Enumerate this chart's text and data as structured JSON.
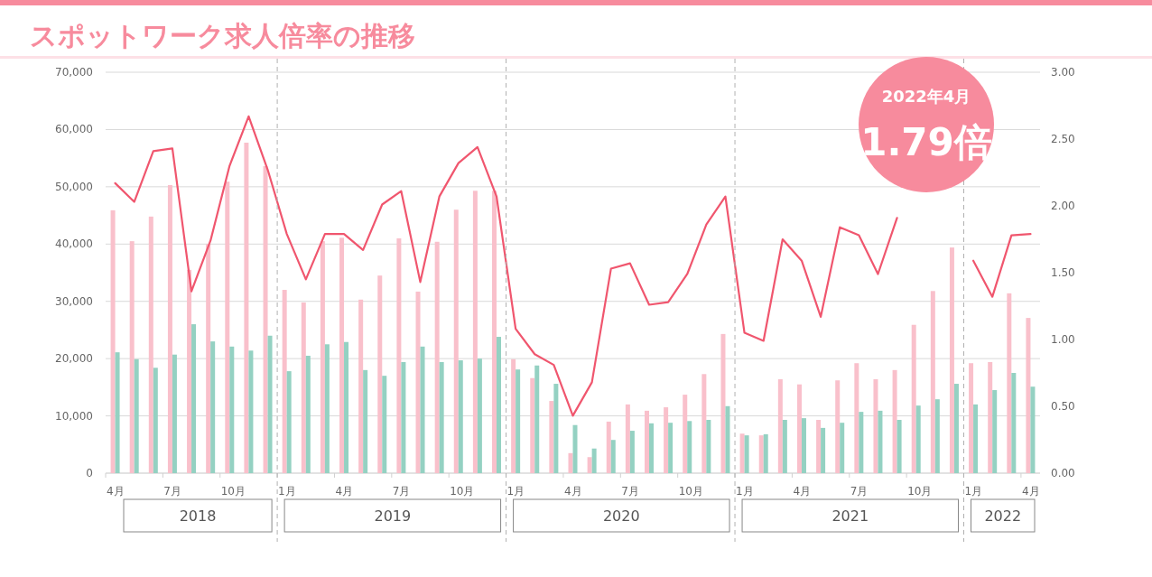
{
  "chart_data": {
    "type": "bar",
    "title": "スポットワーク求人倍率の推移",
    "categories": [
      "4月",
      null,
      null,
      "7月",
      null,
      null,
      "10月",
      null,
      null,
      "1月",
      null,
      null,
      "4月",
      null,
      null,
      "7月",
      null,
      null,
      "10月",
      null,
      null,
      "1月",
      null,
      null,
      "4月",
      null,
      null,
      "7月",
      null,
      null,
      "10月",
      null,
      null,
      "1月",
      null,
      null,
      "4月",
      null,
      null,
      "7月",
      null,
      null,
      "10月",
      null,
      null,
      "1月",
      null,
      null,
      "4月"
    ],
    "series": [
      {
        "color": "#f9c0cb",
        "values": [
          45900,
          40500,
          44800,
          50300,
          35500,
          40000,
          50900,
          57700,
          53600,
          32000,
          29800,
          40500,
          41100,
          30300,
          34500,
          41000,
          31700,
          40400,
          46000,
          49300,
          49300,
          19900,
          16600,
          12600,
          3500,
          2800,
          9000,
          12000,
          10900,
          11500,
          13700,
          17300,
          24300,
          6900,
          6600,
          16400,
          15500,
          9300,
          16200,
          19200,
          16400,
          18000,
          25900,
          31800,
          39400,
          19200,
          19400,
          31400,
          27100
        ]
      },
      {
        "color": "#94d1c2",
        "values": [
          21100,
          19900,
          18400,
          20700,
          26000,
          23000,
          22100,
          21400,
          24000,
          17800,
          20500,
          22500,
          22900,
          18000,
          17000,
          19400,
          22100,
          19400,
          19700,
          20000,
          23800,
          18100,
          18800,
          15600,
          8400,
          4300,
          5800,
          7400,
          8700,
          8800,
          9100,
          9300,
          11700,
          6600,
          6800,
          9300,
          9600,
          7900,
          8800,
          10700,
          10900,
          9300,
          11800,
          12900,
          15600,
          12000,
          14500,
          17500,
          15100
        ]
      },
      {
        "type": "line",
        "axis": "y2",
        "color": "#f0566e",
        "values": [
          2.17,
          2.03,
          2.41,
          2.43,
          1.36,
          1.74,
          2.3,
          2.67,
          2.27,
          1.79,
          1.45,
          1.79,
          1.79,
          1.67,
          2.01,
          2.11,
          1.43,
          2.07,
          2.32,
          2.44,
          2.07,
          1.08,
          0.89,
          0.81,
          0.43,
          0.68,
          1.53,
          1.57,
          1.26,
          1.28,
          1.49,
          1.86,
          2.07,
          1.05,
          0.99,
          1.75,
          1.59,
          1.17,
          1.84,
          1.78,
          1.49,
          1.91,
          null,
          null,
          null,
          1.59,
          1.32,
          1.78,
          1.79
        ]
      }
    ],
    "ylim": [
      0,
      70000
    ],
    "yticks": [
      0,
      {
        "value": 10000,
        "label": "10,000"
      },
      {
        "value": 20000,
        "label": "20,000"
      },
      {
        "value": 30000,
        "label": "30,000"
      },
      {
        "value": 40000,
        "label": "40,000"
      },
      {
        "value": 50000,
        "label": "50,000"
      },
      {
        "value": 60000,
        "label": "60,000"
      },
      {
        "value": 70000,
        "label": "70,000"
      }
    ],
    "y2lim": [
      0,
      3
    ],
    "y2ticks": [
      {
        "value": 0,
        "label": "0.00"
      },
      {
        "value": 0.5,
        "label": "0.50"
      },
      {
        "value": 1,
        "label": "1.00"
      },
      {
        "value": 1.5,
        "label": "1.50"
      },
      {
        "value": 2,
        "label": "2.00"
      },
      {
        "value": 2.5,
        "label": "2.50"
      },
      {
        "value": 3,
        "label": "3.00"
      }
    ],
    "grid": "y",
    "annotations": [
      "2018",
      "2019",
      "2020",
      "2021",
      "2022",
      "2022年4月",
      "1.79倍"
    ]
  }
}
